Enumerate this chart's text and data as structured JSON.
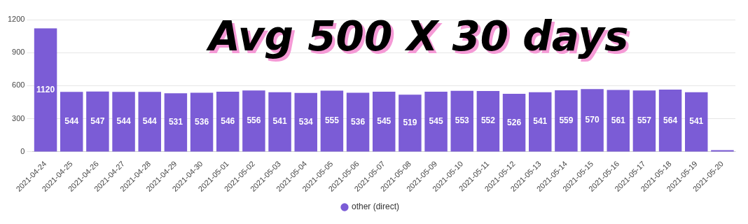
{
  "chart_data": {
    "type": "bar",
    "title": "Avg 500 X 30 days",
    "categories": [
      "2021-04-24",
      "2021-04-25",
      "2021-04-26",
      "2021-04-27",
      "2021-04-28",
      "2021-04-29",
      "2021-04-30",
      "2021-05-01",
      "2021-05-02",
      "2021-05-03",
      "2021-05-04",
      "2021-05-05",
      "2021-05-06",
      "2021-05-07",
      "2021-05-08",
      "2021-05-09",
      "2021-05-10",
      "2021-05-11",
      "2021-05-12",
      "2021-05-13",
      "2021-05-14",
      "2021-05-15",
      "2021-05-16",
      "2021-05-17",
      "2021-05-18",
      "2021-05-19",
      "2021-05-20"
    ],
    "series": [
      {
        "name": "other (direct)",
        "color": "#7b5cd6",
        "values": [
          1120,
          544,
          547,
          544,
          544,
          531,
          536,
          546,
          556,
          541,
          534,
          555,
          536,
          545,
          519,
          545,
          553,
          552,
          526,
          541,
          559,
          570,
          561,
          557,
          564,
          541,
          15
        ],
        "value_labels": [
          "1120",
          "544",
          "547",
          "544",
          "544",
          "531",
          "536",
          "546",
          "556",
          "541",
          "534",
          "555",
          "536",
          "545",
          "519",
          "545",
          "553",
          "552",
          "526",
          "541",
          "559",
          "570",
          "561",
          "557",
          "564",
          "541",
          null
        ]
      }
    ],
    "ylim": [
      0,
      1200
    ],
    "yticks": [
      0,
      300,
      600,
      900,
      1200
    ],
    "grid": "y",
    "legend": "bottom"
  }
}
